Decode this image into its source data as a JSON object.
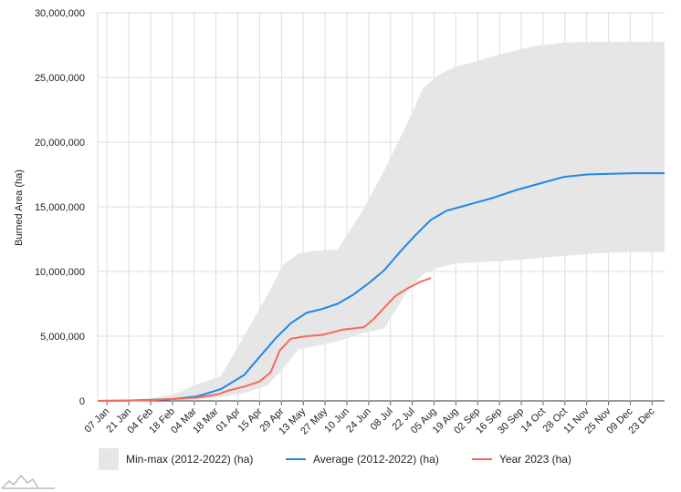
{
  "chart_data": {
    "type": "line",
    "title": "",
    "xlabel": "",
    "ylabel": "Burned Area (ha)",
    "ylim": [
      0,
      30000000
    ],
    "yticks": [
      0,
      5000000,
      10000000,
      15000000,
      20000000,
      25000000,
      30000000
    ],
    "ytick_labels": [
      "0",
      "5,000,000",
      "10,000,000",
      "15,000,000",
      "20,000,000",
      "25,000,000",
      "30,000,000"
    ],
    "xlim_day": [
      1,
      365
    ],
    "xtick_labels": [
      "07 Jan",
      "21 Jan",
      "04 Feb",
      "18 Feb",
      "04 Mar",
      "18 Mar",
      "01 Apr",
      "15 Apr",
      "29 Apr",
      "13 May",
      "27 May",
      "10 Jun",
      "24 Jun",
      "08 Jul",
      "22 Jul",
      "05 Aug",
      "19 Aug",
      "02 Sep",
      "16 Sep",
      "30 Sep",
      "14 Oct",
      "28 Oct",
      "11 Nov",
      "25 Nov",
      "09 Dec",
      "23 Dec"
    ],
    "xtick_days": [
      7,
      21,
      35,
      49,
      63,
      77,
      91,
      105,
      119,
      133,
      147,
      161,
      175,
      189,
      203,
      217,
      231,
      245,
      259,
      273,
      287,
      301,
      315,
      329,
      343,
      357
    ],
    "grid": true,
    "legend_position": "bottom",
    "series": [
      {
        "name": "Min-max (2012-2022) (ha)",
        "kind": "band",
        "color": "#e6e6e6",
        "day": [
          1,
          20,
          35,
          50,
          65,
          80,
          95,
          110,
          120,
          130,
          140,
          155,
          170,
          185,
          200,
          210,
          220,
          230,
          240,
          260,
          280,
          300,
          320,
          340,
          365
        ],
        "lower": [
          0,
          0,
          20000,
          50000,
          100000,
          300000,
          600000,
          1200000,
          2500000,
          4000000,
          4200000,
          4600000,
          5200000,
          5600000,
          8500000,
          9800000,
          10300000,
          10600000,
          10700000,
          10800000,
          11000000,
          11200000,
          11400000,
          11500000,
          11500000
        ],
        "upper": [
          0,
          100000,
          200000,
          500000,
          1300000,
          1900000,
          5000000,
          8200000,
          10500000,
          11400000,
          11600000,
          11700000,
          14500000,
          17800000,
          21500000,
          24200000,
          25200000,
          25800000,
          26100000,
          26800000,
          27400000,
          27700000,
          27750000,
          27750000,
          27750000
        ]
      },
      {
        "name": "Average (2012-2022) (ha)",
        "kind": "line",
        "color": "#1e88e5",
        "day": [
          1,
          20,
          35,
          50,
          65,
          80,
          95,
          105,
          115,
          125,
          135,
          145,
          155,
          165,
          175,
          185,
          195,
          205,
          215,
          225,
          240,
          255,
          270,
          285,
          300,
          315,
          330,
          345,
          365
        ],
        "values": [
          0,
          30000,
          80000,
          150000,
          350000,
          900000,
          2000000,
          3400000,
          4800000,
          6000000,
          6800000,
          7100000,
          7500000,
          8200000,
          9100000,
          10100000,
          11500000,
          12800000,
          14000000,
          14700000,
          15200000,
          15700000,
          16300000,
          16800000,
          17300000,
          17500000,
          17550000,
          17600000,
          17600000
        ]
      },
      {
        "name": "Year 2023 (ha)",
        "kind": "line",
        "color": "#f46b5d",
        "day": [
          1,
          20,
          35,
          50,
          65,
          78,
          85,
          95,
          105,
          112,
          118,
          125,
          135,
          145,
          152,
          158,
          165,
          172,
          178,
          185,
          192,
          200,
          208,
          215
        ],
        "values": [
          0,
          20000,
          60000,
          150000,
          250000,
          500000,
          800000,
          1100000,
          1500000,
          2200000,
          3900000,
          4800000,
          5000000,
          5100000,
          5300000,
          5500000,
          5600000,
          5700000,
          6300000,
          7200000,
          8100000,
          8700000,
          9200000,
          9500000
        ]
      }
    ]
  }
}
